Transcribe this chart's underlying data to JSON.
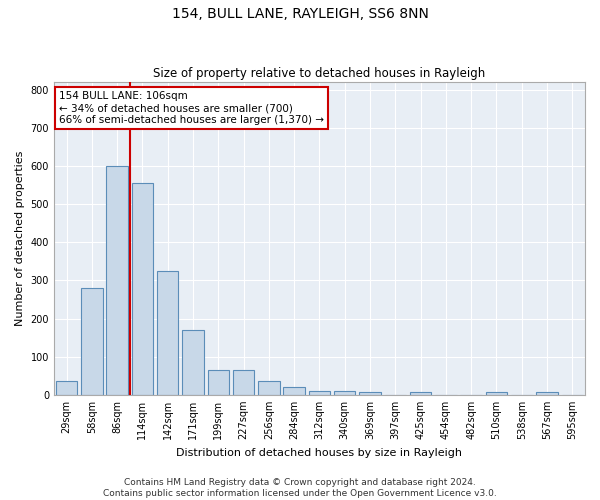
{
  "title1": "154, BULL LANE, RAYLEIGH, SS6 8NN",
  "title2": "Size of property relative to detached houses in Rayleigh",
  "xlabel": "Distribution of detached houses by size in Rayleigh",
  "ylabel": "Number of detached properties",
  "categories": [
    "29sqm",
    "58sqm",
    "86sqm",
    "114sqm",
    "142sqm",
    "171sqm",
    "199sqm",
    "227sqm",
    "256sqm",
    "284sqm",
    "312sqm",
    "340sqm",
    "369sqm",
    "397sqm",
    "425sqm",
    "454sqm",
    "482sqm",
    "510sqm",
    "538sqm",
    "567sqm",
    "595sqm"
  ],
  "values": [
    35,
    280,
    600,
    555,
    325,
    170,
    65,
    65,
    35,
    20,
    10,
    10,
    8,
    0,
    8,
    0,
    0,
    8,
    0,
    8,
    0
  ],
  "bar_color": "#c8d8e8",
  "bar_edge_color": "#5b8db8",
  "red_line_x": 2.5,
  "annotation_text": "154 BULL LANE: 106sqm\n← 34% of detached houses are smaller (700)\n66% of semi-detached houses are larger (1,370) →",
  "annotation_box_color": "#ffffff",
  "annotation_box_edge": "#cc0000",
  "annotation_text_color": "#000000",
  "red_line_color": "#cc0000",
  "ylim": [
    0,
    820
  ],
  "yticks": [
    0,
    100,
    200,
    300,
    400,
    500,
    600,
    700,
    800
  ],
  "background_color": "#e8eef5",
  "grid_color": "#ffffff",
  "footer1": "Contains HM Land Registry data © Crown copyright and database right 2024.",
  "footer2": "Contains public sector information licensed under the Open Government Licence v3.0.",
  "title1_fontsize": 10,
  "title2_fontsize": 8.5,
  "xlabel_fontsize": 8,
  "ylabel_fontsize": 8,
  "tick_fontsize": 7,
  "footer_fontsize": 6.5,
  "annotation_fontsize": 7.5
}
